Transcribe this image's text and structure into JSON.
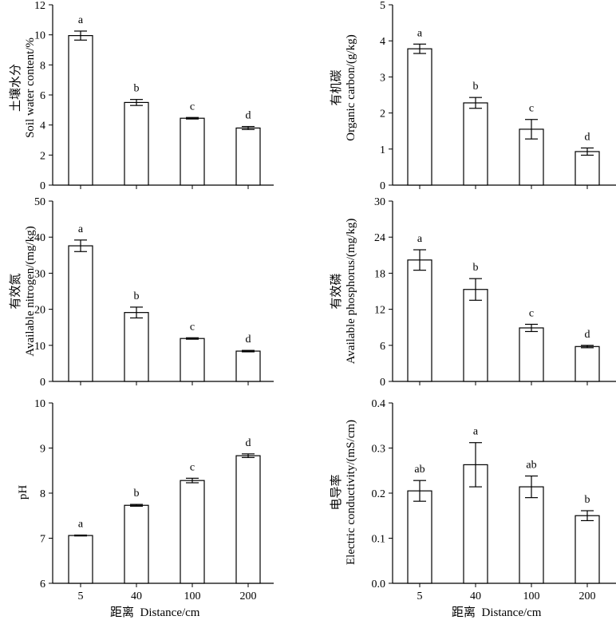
{
  "x_axis_label": "距离  Distance/cm",
  "chart_data": [
    {
      "type": "bar",
      "ylabel_cn": "土壤水分",
      "ylabel_en": "Soil water content/%",
      "categories": [
        "5",
        "40",
        "100",
        "200"
      ],
      "values": [
        9.95,
        5.5,
        4.45,
        3.8
      ],
      "errors": [
        0.3,
        0.2,
        0.05,
        0.1
      ],
      "letters": [
        "a",
        "b",
        "c",
        "d"
      ],
      "ylim": [
        0,
        12
      ],
      "yticks": [
        "0",
        "2",
        "4",
        "6",
        "8",
        "10",
        "12"
      ]
    },
    {
      "type": "bar",
      "ylabel_cn": "有机碳",
      "ylabel_en": "Organic carbon/(g/kg)",
      "categories": [
        "5",
        "40",
        "100",
        "200"
      ],
      "values": [
        3.78,
        2.28,
        1.55,
        0.93
      ],
      "errors": [
        0.13,
        0.15,
        0.27,
        0.1
      ],
      "letters": [
        "a",
        "b",
        "c",
        "d"
      ],
      "ylim": [
        0,
        5
      ],
      "yticks": [
        "0",
        "1",
        "2",
        "3",
        "4",
        "5"
      ]
    },
    {
      "type": "bar",
      "ylabel_cn": "有效氮",
      "ylabel_en": "Available nitrogen/(mg/kg)",
      "categories": [
        "5",
        "40",
        "100",
        "200"
      ],
      "values": [
        37.6,
        19.1,
        11.9,
        8.4
      ],
      "errors": [
        1.6,
        1.5,
        0.2,
        0.2
      ],
      "letters": [
        "a",
        "b",
        "c",
        "d"
      ],
      "ylim": [
        0,
        50
      ],
      "yticks": [
        "0",
        "10",
        "20",
        "30",
        "40",
        "50"
      ]
    },
    {
      "type": "bar",
      "ylabel_cn": "有效磷",
      "ylabel_en": "Available phosphorus/(mg/kg)",
      "categories": [
        "5",
        "40",
        "100",
        "200"
      ],
      "values": [
        20.2,
        15.3,
        8.9,
        5.8
      ],
      "errors": [
        1.7,
        1.8,
        0.6,
        0.2
      ],
      "letters": [
        "a",
        "b",
        "c",
        "d"
      ],
      "ylim": [
        0,
        30
      ],
      "yticks": [
        "0",
        "6",
        "12",
        "18",
        "24",
        "30"
      ]
    },
    {
      "type": "bar",
      "ylabel_cn": "",
      "ylabel_en": "pH",
      "categories": [
        "5",
        "40",
        "100",
        "200"
      ],
      "values": [
        7.06,
        7.73,
        8.28,
        8.83
      ],
      "errors": [
        0.01,
        0.02,
        0.05,
        0.04
      ],
      "letters": [
        "a",
        "b",
        "c",
        "d"
      ],
      "ylim": [
        6,
        10
      ],
      "yticks": [
        "6",
        "7",
        "8",
        "9",
        "10"
      ]
    },
    {
      "type": "bar",
      "ylabel_cn": "电导率",
      "ylabel_en": "Electric conductivity/(mS/cm)",
      "categories": [
        "5",
        "40",
        "100",
        "200"
      ],
      "values": [
        0.205,
        0.263,
        0.214,
        0.15
      ],
      "errors": [
        0.023,
        0.049,
        0.024,
        0.011
      ],
      "letters": [
        "ab",
        "a",
        "ab",
        "b"
      ],
      "ylim": [
        0,
        0.4
      ],
      "yticks": [
        "0.0",
        "0.1",
        "0.2",
        "0.3",
        "0.4"
      ]
    }
  ]
}
